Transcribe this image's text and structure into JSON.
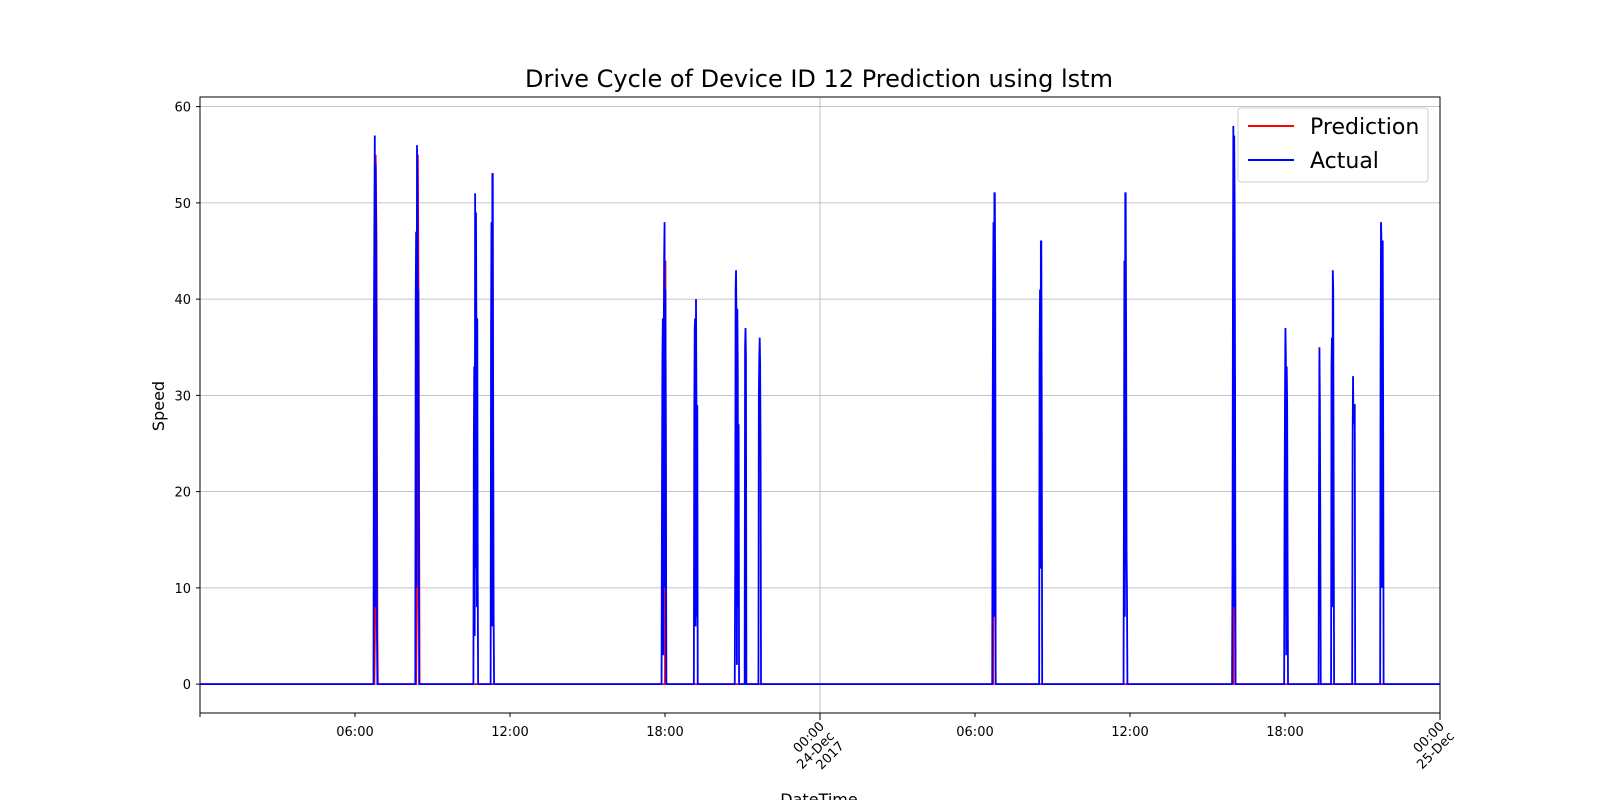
{
  "chart_data": {
    "type": "line",
    "title": "Drive Cycle of Device ID 12 Prediction using lstm",
    "xlabel": "DateTime",
    "ylabel": "Speed",
    "x_range": [
      "2017-12-23T00:00",
      "2017-12-25T00:00"
    ],
    "ylim": [
      -3,
      61
    ],
    "y_ticks": [
      0,
      10,
      20,
      30,
      40,
      50,
      60
    ],
    "x_ticks": [
      {
        "t": "2017-12-23T06:00",
        "label": "06:00"
      },
      {
        "t": "2017-12-23T12:00",
        "label": "12:00"
      },
      {
        "t": "2017-12-23T18:00",
        "label": "18:00"
      },
      {
        "t": "2017-12-24T00:00",
        "label": "00:00\n24-Dec\n2017"
      },
      {
        "t": "2017-12-24T06:00",
        "label": "06:00"
      },
      {
        "t": "2017-12-24T12:00",
        "label": "12:00"
      },
      {
        "t": "2017-12-24T18:00",
        "label": "18:00"
      },
      {
        "t": "2017-12-25T00:00",
        "label": "00:00\n25-Dec"
      }
    ],
    "grid": true,
    "legend_position": "upper-right",
    "series": [
      {
        "name": "Prediction",
        "color": "#ff0000",
        "points": [
          [
            "2017-12-23T06:45",
            0
          ],
          [
            "2017-12-23T06:47",
            8
          ],
          [
            "2017-12-23T06:48",
            55
          ],
          [
            "2017-12-23T06:50",
            46
          ],
          [
            "2017-12-23T06:52",
            6
          ],
          [
            "2017-12-23T06:53",
            0
          ],
          [
            "2017-12-23T08:22",
            0
          ],
          [
            "2017-12-23T08:24",
            9
          ],
          [
            "2017-12-23T08:26",
            55
          ],
          [
            "2017-12-23T08:28",
            36
          ],
          [
            "2017-12-23T08:30",
            0
          ],
          [
            "2017-12-23T18:00",
            0
          ],
          [
            "2017-12-23T18:01",
            44
          ],
          [
            "2017-12-23T18:03",
            0
          ],
          [
            "2017-12-24T06:42",
            0
          ],
          [
            "2017-12-24T06:45",
            46
          ],
          [
            "2017-12-24T06:48",
            0
          ],
          [
            "2017-12-24T16:00",
            0
          ],
          [
            "2017-12-24T16:02",
            50
          ],
          [
            "2017-12-24T16:05",
            0
          ]
        ]
      },
      {
        "name": "Actual",
        "color": "#0000ff",
        "points": [
          [
            "2017-12-23T00:00",
            0
          ],
          [
            "2017-12-23T06:43",
            0
          ],
          [
            "2017-12-23T06:44",
            37
          ],
          [
            "2017-12-23T06:45",
            48
          ],
          [
            "2017-12-23T06:46",
            57
          ],
          [
            "2017-12-23T06:47",
            8
          ],
          [
            "2017-12-23T06:48",
            54
          ],
          [
            "2017-12-23T06:49",
            48
          ],
          [
            "2017-12-23T06:50",
            30
          ],
          [
            "2017-12-23T06:51",
            5
          ],
          [
            "2017-12-23T06:52",
            0
          ],
          [
            "2017-12-23T08:20",
            0
          ],
          [
            "2017-12-23T08:21",
            40
          ],
          [
            "2017-12-23T08:22",
            47
          ],
          [
            "2017-12-23T08:23",
            10
          ],
          [
            "2017-12-23T08:24",
            56
          ],
          [
            "2017-12-23T08:25",
            51
          ],
          [
            "2017-12-23T08:26",
            34
          ],
          [
            "2017-12-23T08:27",
            41
          ],
          [
            "2017-12-23T08:29",
            0
          ],
          [
            "2017-12-23T10:35",
            0
          ],
          [
            "2017-12-23T10:36",
            25
          ],
          [
            "2017-12-23T10:37",
            33
          ],
          [
            "2017-12-23T10:38",
            5
          ],
          [
            "2017-12-23T10:39",
            51
          ],
          [
            "2017-12-23T10:40",
            12
          ],
          [
            "2017-12-23T10:41",
            49
          ],
          [
            "2017-12-23T10:42",
            36
          ],
          [
            "2017-12-23T10:43",
            8
          ],
          [
            "2017-12-23T10:44",
            38
          ],
          [
            "2017-12-23T10:45",
            11
          ],
          [
            "2017-12-23T10:46",
            0
          ],
          [
            "2017-12-23T11:15",
            0
          ],
          [
            "2017-12-23T11:16",
            37
          ],
          [
            "2017-12-23T11:17",
            48
          ],
          [
            "2017-12-23T11:18",
            6
          ],
          [
            "2017-12-23T11:19",
            53
          ],
          [
            "2017-12-23T11:20",
            53
          ],
          [
            "2017-12-23T11:21",
            26
          ],
          [
            "2017-12-23T11:22",
            7
          ],
          [
            "2017-12-23T11:23",
            0
          ],
          [
            "2017-12-23T17:52",
            0
          ],
          [
            "2017-12-23T17:53",
            20
          ],
          [
            "2017-12-23T17:54",
            34
          ],
          [
            "2017-12-23T17:55",
            38
          ],
          [
            "2017-12-23T17:56",
            3
          ],
          [
            "2017-12-23T17:57",
            35
          ],
          [
            "2017-12-23T17:58",
            44
          ],
          [
            "2017-12-23T17:59",
            48
          ],
          [
            "2017-12-23T18:00",
            10
          ],
          [
            "2017-12-23T18:01",
            41
          ],
          [
            "2017-12-23T18:02",
            24
          ],
          [
            "2017-12-23T18:03",
            0
          ],
          [
            "2017-12-23T19:07",
            0
          ],
          [
            "2017-12-23T19:08",
            28
          ],
          [
            "2017-12-23T19:09",
            37
          ],
          [
            "2017-12-23T19:10",
            38
          ],
          [
            "2017-12-23T19:11",
            6
          ],
          [
            "2017-12-23T19:12",
            40
          ],
          [
            "2017-12-23T19:13",
            30
          ],
          [
            "2017-12-23T19:14",
            7
          ],
          [
            "2017-12-23T19:15",
            29
          ],
          [
            "2017-12-23T19:16",
            0
          ],
          [
            "2017-12-23T20:42",
            0
          ],
          [
            "2017-12-23T20:43",
            12
          ],
          [
            "2017-12-23T20:44",
            41
          ],
          [
            "2017-12-23T20:45",
            43
          ],
          [
            "2017-12-23T20:46",
            38
          ],
          [
            "2017-12-23T20:47",
            2
          ],
          [
            "2017-12-23T20:48",
            39
          ],
          [
            "2017-12-23T20:49",
            33
          ],
          [
            "2017-12-23T20:50",
            8
          ],
          [
            "2017-12-23T20:51",
            27
          ],
          [
            "2017-12-23T20:52",
            0
          ],
          [
            "2017-12-23T21:05",
            0
          ],
          [
            "2017-12-23T21:06",
            35
          ],
          [
            "2017-12-23T21:07",
            37
          ],
          [
            "2017-12-23T21:08",
            34
          ],
          [
            "2017-12-23T21:09",
            0
          ],
          [
            "2017-12-23T21:37",
            0
          ],
          [
            "2017-12-23T21:38",
            30
          ],
          [
            "2017-12-23T21:39",
            34
          ],
          [
            "2017-12-23T21:40",
            36
          ],
          [
            "2017-12-23T21:41",
            33
          ],
          [
            "2017-12-23T21:42",
            24
          ],
          [
            "2017-12-23T21:43",
            0
          ],
          [
            "2017-12-24T06:40",
            0
          ],
          [
            "2017-12-24T06:41",
            27
          ],
          [
            "2017-12-24T06:42",
            41
          ],
          [
            "2017-12-24T06:43",
            48
          ],
          [
            "2017-12-24T06:44",
            7
          ],
          [
            "2017-12-24T06:45",
            51
          ],
          [
            "2017-12-24T06:46",
            51
          ],
          [
            "2017-12-24T06:47",
            42
          ],
          [
            "2017-12-24T06:48",
            0
          ],
          [
            "2017-12-24T08:29",
            0
          ],
          [
            "2017-12-24T08:30",
            34
          ],
          [
            "2017-12-24T08:31",
            41
          ],
          [
            "2017-12-24T08:32",
            12
          ],
          [
            "2017-12-24T08:33",
            46
          ],
          [
            "2017-12-24T08:34",
            46
          ],
          [
            "2017-12-24T08:35",
            28
          ],
          [
            "2017-12-24T08:36",
            0
          ],
          [
            "2017-12-24T11:45",
            0
          ],
          [
            "2017-12-24T11:46",
            21
          ],
          [
            "2017-12-24T11:47",
            44
          ],
          [
            "2017-12-24T11:48",
            7
          ],
          [
            "2017-12-24T11:49",
            51
          ],
          [
            "2017-12-24T11:50",
            51
          ],
          [
            "2017-12-24T11:51",
            36
          ],
          [
            "2017-12-24T11:52",
            14
          ],
          [
            "2017-12-24T11:53",
            9
          ],
          [
            "2017-12-24T11:54",
            0
          ],
          [
            "2017-12-24T15:57",
            0
          ],
          [
            "2017-12-24T15:58",
            12
          ],
          [
            "2017-12-24T15:59",
            38
          ],
          [
            "2017-12-24T16:00",
            58
          ],
          [
            "2017-12-24T16:01",
            8
          ],
          [
            "2017-12-24T16:02",
            57
          ],
          [
            "2017-12-24T16:03",
            50
          ],
          [
            "2017-12-24T16:04",
            31
          ],
          [
            "2017-12-24T16:05",
            0
          ],
          [
            "2017-12-24T17:58",
            0
          ],
          [
            "2017-12-24T17:59",
            19
          ],
          [
            "2017-12-24T18:00",
            30
          ],
          [
            "2017-12-24T18:01",
            37
          ],
          [
            "2017-12-24T18:02",
            34
          ],
          [
            "2017-12-24T18:03",
            3
          ],
          [
            "2017-12-24T18:04",
            33
          ],
          [
            "2017-12-24T18:05",
            29
          ],
          [
            "2017-12-24T18:06",
            13
          ],
          [
            "2017-12-24T18:07",
            0
          ],
          [
            "2017-12-24T19:18",
            0
          ],
          [
            "2017-12-24T19:19",
            21
          ],
          [
            "2017-12-24T19:20",
            35
          ],
          [
            "2017-12-24T19:21",
            29
          ],
          [
            "2017-12-24T19:22",
            17
          ],
          [
            "2017-12-24T19:23",
            0
          ],
          [
            "2017-12-24T19:47",
            0
          ],
          [
            "2017-12-24T19:48",
            33
          ],
          [
            "2017-12-24T19:49",
            36
          ],
          [
            "2017-12-24T19:50",
            8
          ],
          [
            "2017-12-24T19:51",
            43
          ],
          [
            "2017-12-24T19:52",
            41
          ],
          [
            "2017-12-24T19:53",
            20
          ],
          [
            "2017-12-24T19:54",
            0
          ],
          [
            "2017-12-24T20:36",
            0
          ],
          [
            "2017-12-24T20:37",
            25
          ],
          [
            "2017-12-24T20:38",
            32
          ],
          [
            "2017-12-24T20:39",
            27
          ],
          [
            "2017-12-24T20:40",
            29
          ],
          [
            "2017-12-24T20:42",
            29
          ],
          [
            "2017-12-24T20:43",
            0
          ],
          [
            "2017-12-24T21:41",
            0
          ],
          [
            "2017-12-24T21:42",
            34
          ],
          [
            "2017-12-24T21:43",
            48
          ],
          [
            "2017-12-24T21:44",
            46
          ],
          [
            "2017-12-24T21:45",
            10
          ],
          [
            "2017-12-24T21:46",
            46
          ],
          [
            "2017-12-24T21:47",
            46
          ],
          [
            "2017-12-24T21:48",
            27
          ],
          [
            "2017-12-24T21:49",
            0
          ],
          [
            "2017-12-25T00:00",
            0
          ]
        ]
      }
    ]
  }
}
